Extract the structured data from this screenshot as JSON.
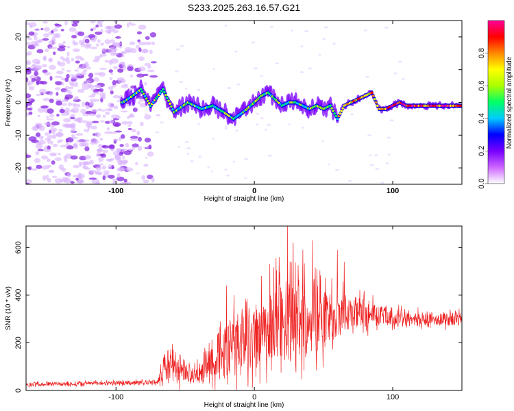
{
  "title": "S233.2025.263.16.57.G21",
  "chart_data": [
    {
      "type": "heatmap",
      "name": "spectrogram",
      "xlabel": "Height of straight line (km)",
      "ylabel": "Frequency (Hz)",
      "xlim": [
        -165,
        150
      ],
      "ylim": [
        -25,
        25
      ],
      "xticks": [
        -100,
        0,
        100
      ],
      "yticks": [
        -20,
        -10,
        0,
        10,
        20
      ],
      "xtick_labels": [
        "-100",
        "0",
        "100"
      ],
      "ytick_labels": [
        "-20",
        "-10",
        "0",
        "10",
        "20"
      ],
      "colorbar": {
        "label": "Normalized spectral amplitude",
        "range": [
          0,
          1
        ],
        "ticks": [
          "0.0",
          "0.2",
          "0.4",
          "0.6",
          "0.8"
        ],
        "colors": [
          "#ffffff",
          "#cc66ff",
          "#7700ff",
          "#0000ff",
          "#00ccff",
          "#00ff66",
          "#aaff00",
          "#ffff00",
          "#ff8800",
          "#ff0000",
          "#ff0099"
        ]
      },
      "ridge": [
        {
          "x": -95,
          "y": 0
        },
        {
          "x": -88,
          "y": 2
        },
        {
          "x": -82,
          "y": 4
        },
        {
          "x": -75,
          "y": -1
        },
        {
          "x": -66,
          "y": 4
        },
        {
          "x": -58,
          "y": -3
        },
        {
          "x": -48,
          "y": 0
        },
        {
          "x": -38,
          "y": -2
        },
        {
          "x": -30,
          "y": -1
        },
        {
          "x": -22,
          "y": -3
        },
        {
          "x": -15,
          "y": -5
        },
        {
          "x": -8,
          "y": -3
        },
        {
          "x": 0,
          "y": 0
        },
        {
          "x": 5,
          "y": 2
        },
        {
          "x": 10,
          "y": 3
        },
        {
          "x": 15,
          "y": 1
        },
        {
          "x": 20,
          "y": -1
        },
        {
          "x": 25,
          "y": 0
        },
        {
          "x": 30,
          "y": 0
        },
        {
          "x": 35,
          "y": -1
        },
        {
          "x": 40,
          "y": -2
        },
        {
          "x": 45,
          "y": -1
        },
        {
          "x": 50,
          "y": -2
        },
        {
          "x": 55,
          "y": -1
        },
        {
          "x": 60,
          "y": -5
        },
        {
          "x": 65,
          "y": -1
        },
        {
          "x": 70,
          "y": 0
        },
        {
          "x": 75,
          "y": 1
        },
        {
          "x": 80,
          "y": 2
        },
        {
          "x": 85,
          "y": 3
        },
        {
          "x": 90,
          "y": -2
        },
        {
          "x": 95,
          "y": -2
        },
        {
          "x": 100,
          "y": -1
        },
        {
          "x": 105,
          "y": 0
        },
        {
          "x": 110,
          "y": -1
        },
        {
          "x": 120,
          "y": -1
        },
        {
          "x": 130,
          "y": -1
        },
        {
          "x": 140,
          "y": -1
        },
        {
          "x": 148,
          "y": -1
        }
      ]
    },
    {
      "type": "line",
      "name": "snr",
      "xlabel": "Height of straight line (km)",
      "ylabel": "SNR (10 * v/v)",
      "xlim": [
        -165,
        150
      ],
      "ylim": [
        0,
        690
      ],
      "xticks": [
        -100,
        0,
        100
      ],
      "yticks": [
        0,
        200,
        400,
        600
      ],
      "xtick_labels": [
        "-100",
        "0",
        "100"
      ],
      "ytick_labels": [
        "0",
        "200",
        "400",
        "600"
      ],
      "color": "#ee2222",
      "envelope": [
        {
          "x": -165,
          "base": 25,
          "amp": 12
        },
        {
          "x": -70,
          "base": 35,
          "amp": 15
        },
        {
          "x": -64,
          "base": 110,
          "amp": 110
        },
        {
          "x": -55,
          "base": 100,
          "amp": 110
        },
        {
          "x": -45,
          "base": 60,
          "amp": 40
        },
        {
          "x": -35,
          "base": 90,
          "amp": 110
        },
        {
          "x": -25,
          "base": 150,
          "amp": 180
        },
        {
          "x": -15,
          "base": 180,
          "amp": 220
        },
        {
          "x": 0,
          "base": 220,
          "amp": 240
        },
        {
          "x": 15,
          "base": 280,
          "amp": 280
        },
        {
          "x": 25,
          "base": 300,
          "amp": 300
        },
        {
          "x": 40,
          "base": 300,
          "amp": 260
        },
        {
          "x": 55,
          "base": 320,
          "amp": 200
        },
        {
          "x": 70,
          "base": 330,
          "amp": 120
        },
        {
          "x": 90,
          "base": 320,
          "amp": 80
        },
        {
          "x": 110,
          "base": 300,
          "amp": 50
        },
        {
          "x": 150,
          "base": 300,
          "amp": 45
        }
      ],
      "peaks": [
        {
          "x": 24,
          "y": 690
        },
        {
          "x": 28,
          "y": 620
        },
        {
          "x": 42,
          "y": 630
        },
        {
          "x": 18,
          "y": 560
        },
        {
          "x": 35,
          "y": 590
        },
        {
          "x": 60,
          "y": 590
        },
        {
          "x": -20,
          "y": 440
        },
        {
          "x": 5,
          "y": 480
        },
        {
          "x": 65,
          "y": 540
        }
      ]
    }
  ]
}
